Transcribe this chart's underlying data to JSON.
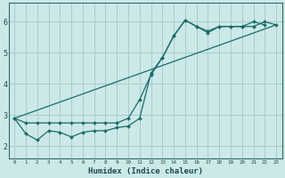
{
  "xlabel": "Humidex (Indice chaleur)",
  "bg_color": "#cce8e8",
  "grid_color": "#aacccc",
  "line_color": "#1a6b6b",
  "series1_x": [
    0,
    1,
    2,
    3,
    4,
    5,
    6,
    7,
    8,
    9,
    10,
    11,
    12,
    13,
    14,
    15,
    16,
    17,
    18,
    19,
    20,
    21,
    22,
    23
  ],
  "series1_y": [
    2.9,
    2.75,
    2.75,
    2.75,
    2.75,
    2.75,
    2.75,
    2.75,
    2.75,
    2.75,
    2.9,
    3.5,
    4.3,
    4.85,
    5.55,
    6.05,
    5.85,
    5.7,
    5.85,
    5.85,
    5.85,
    5.85,
    6.0,
    5.9
  ],
  "series2_x": [
    0,
    1,
    2,
    3,
    4,
    5,
    6,
    7,
    8,
    9,
    10,
    11,
    12,
    13,
    14,
    15,
    16,
    17,
    18,
    19,
    20,
    21,
    22
  ],
  "series2_y": [
    2.9,
    2.4,
    2.2,
    2.5,
    2.45,
    2.3,
    2.45,
    2.5,
    2.5,
    2.6,
    2.65,
    2.9,
    4.35,
    4.85,
    5.55,
    6.05,
    5.85,
    5.65,
    5.85,
    5.85,
    5.85,
    6.0,
    5.9
  ],
  "series3_x": [
    0,
    23
  ],
  "series3_y": [
    2.9,
    5.9
  ],
  "xlim": [
    -0.5,
    23.5
  ],
  "ylim": [
    1.6,
    6.6
  ],
  "yticks": [
    2,
    3,
    4,
    5,
    6
  ],
  "xticks": [
    0,
    1,
    2,
    3,
    4,
    5,
    6,
    7,
    8,
    9,
    10,
    11,
    12,
    13,
    14,
    15,
    16,
    17,
    18,
    19,
    20,
    21,
    22,
    23
  ]
}
